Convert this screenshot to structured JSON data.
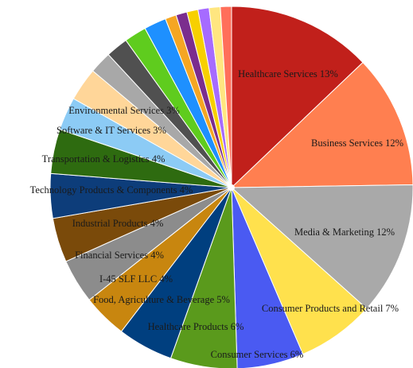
{
  "chart_data": {
    "type": "pie",
    "title": "",
    "legend": "none",
    "slices": [
      {
        "label": "Healthcare Services",
        "value": 13,
        "display": "Healthcare Services 13%",
        "color": "#C1201B"
      },
      {
        "label": "Business Services",
        "value": 12,
        "display": "Business Services 12%",
        "color": "#FF7F50"
      },
      {
        "label": "Media & Marketing",
        "value": 12,
        "display": "Media & Marketing 12%",
        "color": "#A9A9A9"
      },
      {
        "label": "Consumer Products and Retail",
        "value": 7,
        "display": "Consumer Products and Retail 7%",
        "color": "#FFE14D"
      },
      {
        "label": "Consumer Services",
        "value": 6,
        "display": "Consumer Services 6%",
        "color": "#4A5AF2"
      },
      {
        "label": "Healthcare Products",
        "value": 6,
        "display": "Healthcare Products 6%",
        "color": "#5A9A1C"
      },
      {
        "label": "Food, Agriculture & Beverage",
        "value": 5,
        "display": "Food, Agriculture & Beverage 5%",
        "color": "#003F7F"
      },
      {
        "label": "I-45 SLF LLC",
        "value": 4,
        "display": "I-45 SLF LLC 4%",
        "color": "#C8860F"
      },
      {
        "label": "Financial Services",
        "value": 4,
        "display": "Financial Services 4%",
        "color": "#8C8C8C"
      },
      {
        "label": "Industrial Products",
        "value": 4,
        "display": "Industrial Products 4%",
        "color": "#7A4A0A"
      },
      {
        "label": "Technology Products & Components",
        "value": 4,
        "display": "Technology Products & Components 4%",
        "color": "#0D3D7A"
      },
      {
        "label": "Transportation & Logistics",
        "value": 4,
        "display": "Transportation & Logistics 4%",
        "color": "#2E6B10"
      },
      {
        "label": "Software & IT Services",
        "value": 3,
        "display": "Software & IT Services 3%",
        "color": "#8CCBF5"
      },
      {
        "label": "Environmental Services",
        "value": 3,
        "display": "Environmental Services 3%",
        "color": "#FFD699"
      },
      {
        "label": "",
        "value": 2,
        "display": "",
        "color": "#A8A8A8"
      },
      {
        "label": "",
        "value": 2,
        "display": "",
        "color": "#505050"
      },
      {
        "label": "",
        "value": 2,
        "display": "",
        "color": "#5FCC1E"
      },
      {
        "label": "",
        "value": 2,
        "display": "",
        "color": "#1E90FF"
      },
      {
        "label": "",
        "value": 1,
        "display": "",
        "color": "#F5A623"
      },
      {
        "label": "",
        "value": 1,
        "display": "",
        "color": "#7B2D8E"
      },
      {
        "label": "",
        "value": 1,
        "display": "",
        "color": "#F7D000"
      },
      {
        "label": "",
        "value": 1,
        "display": "",
        "color": "#A66BFF"
      },
      {
        "label": "",
        "value": 1,
        "display": "",
        "color": "#FFE680"
      },
      {
        "label": "",
        "value": 1,
        "display": "",
        "color": "#FF6F5A"
      }
    ]
  }
}
